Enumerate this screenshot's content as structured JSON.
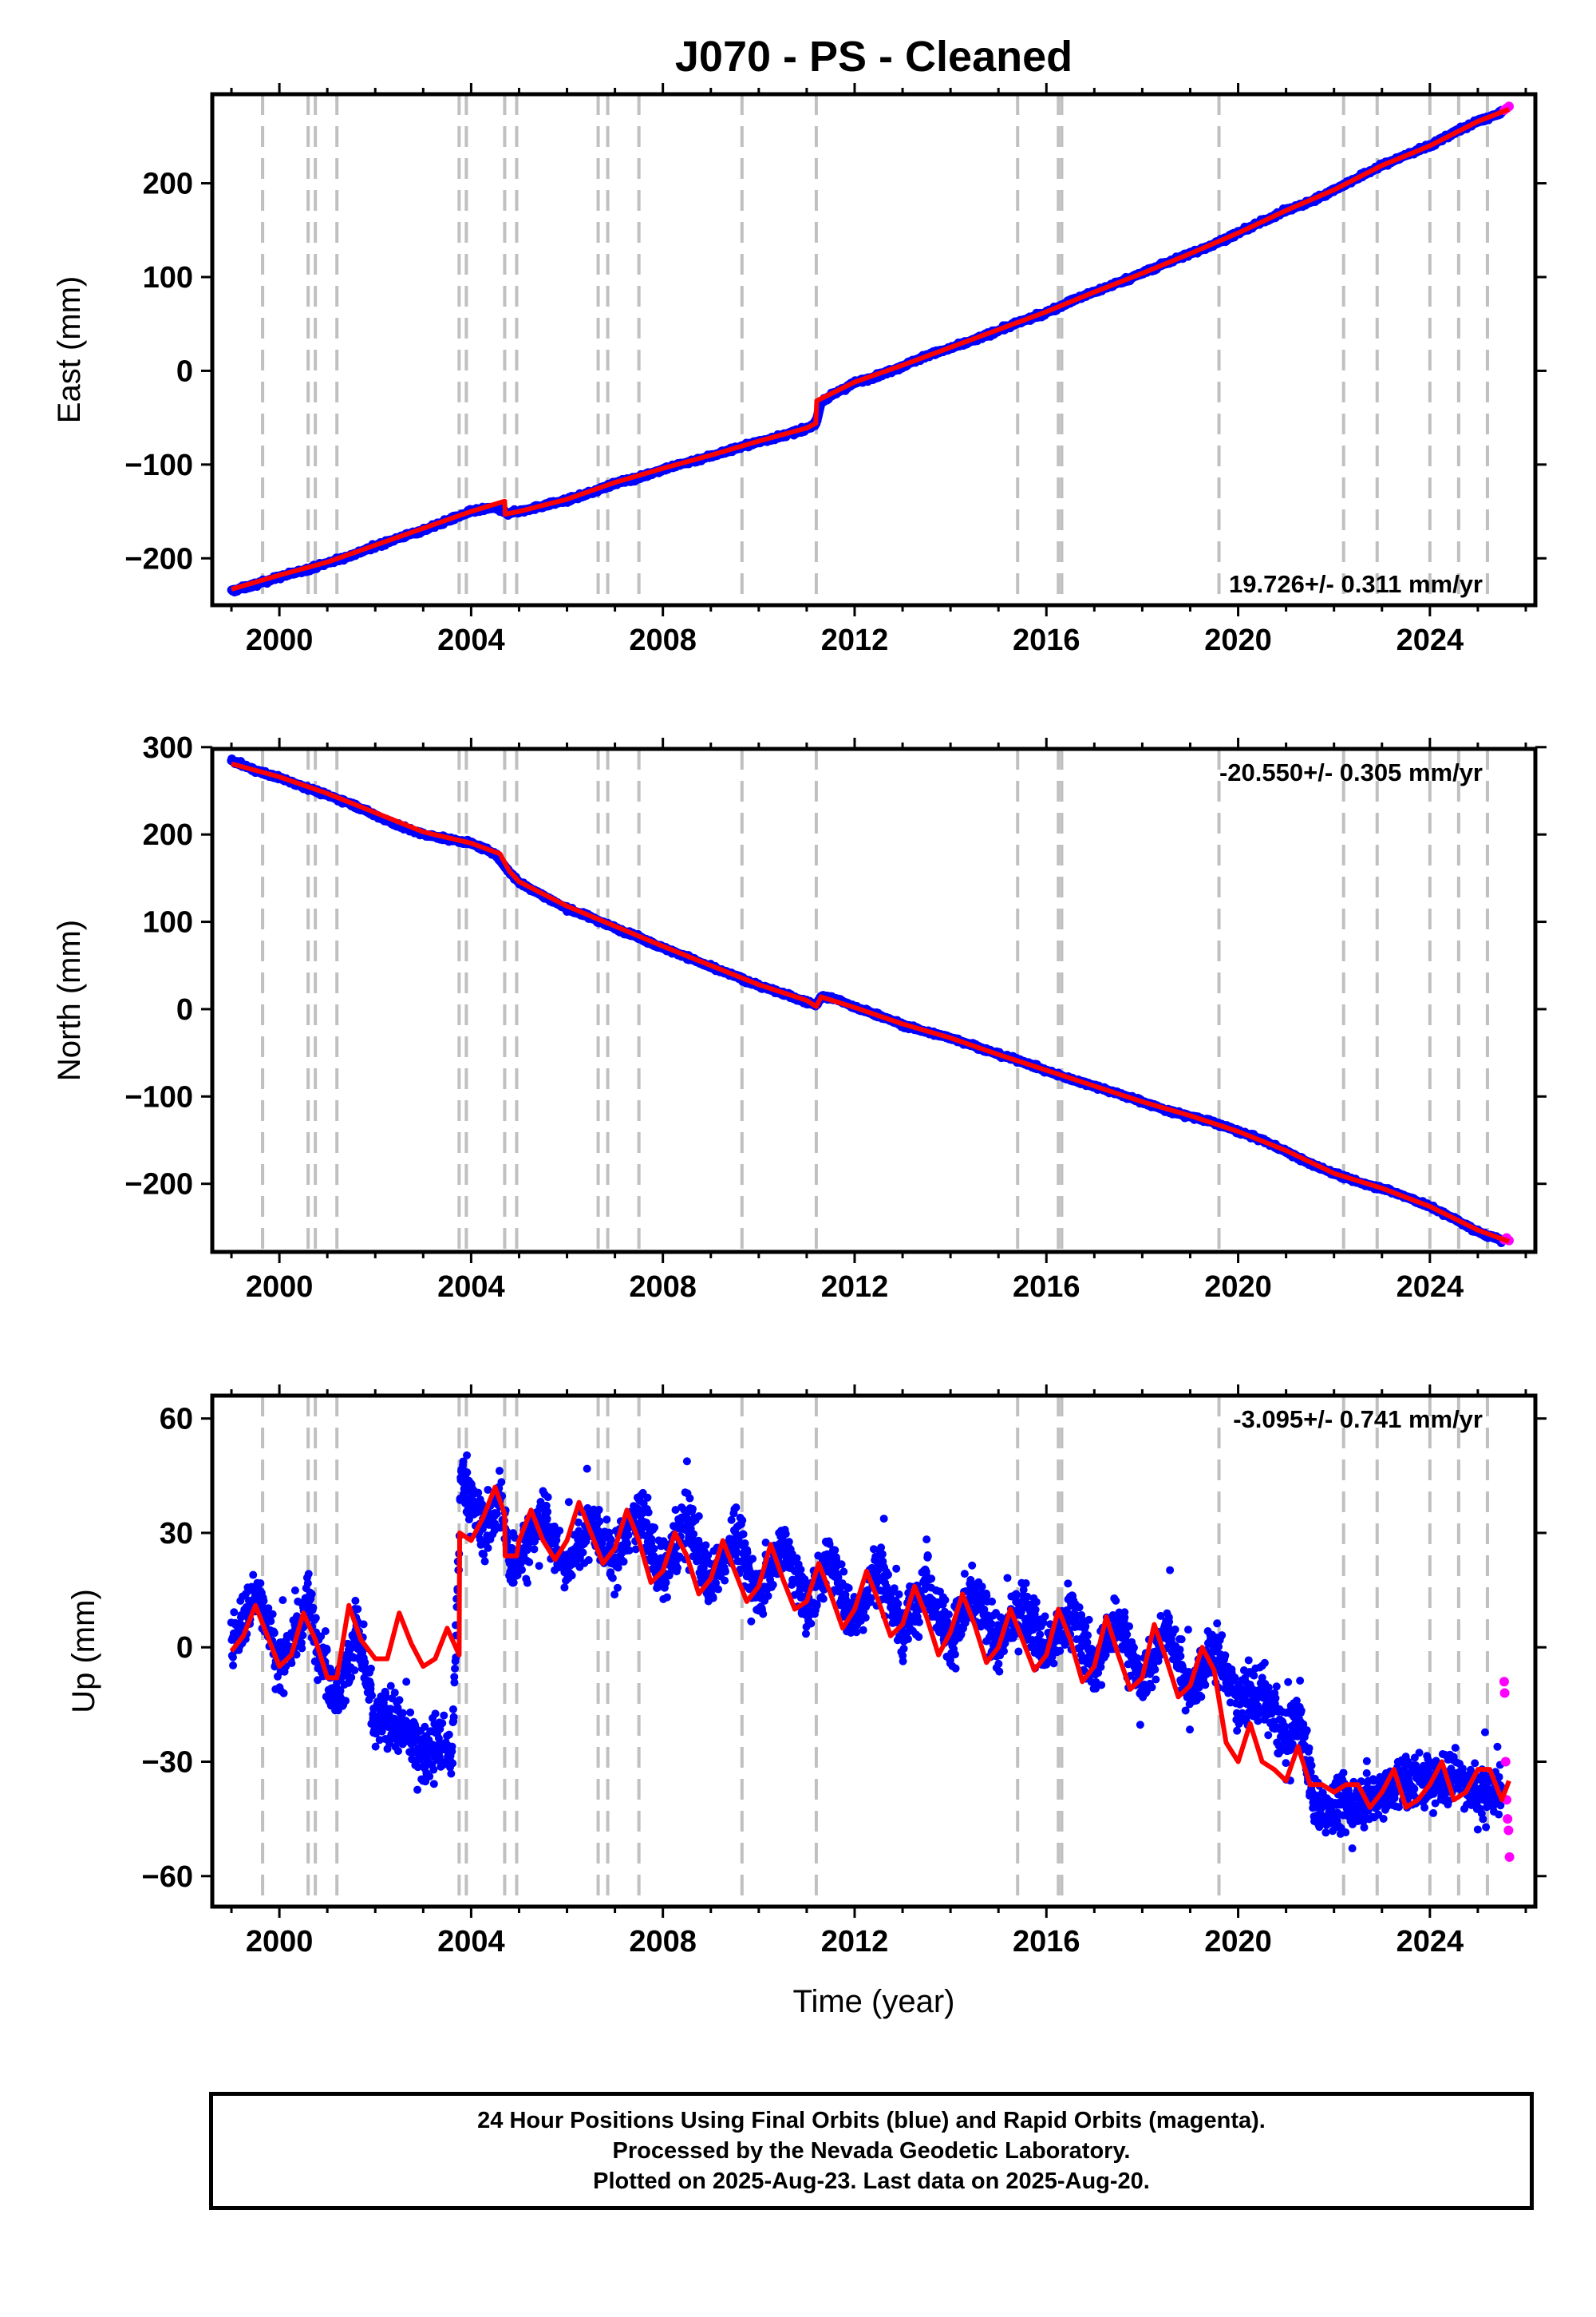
{
  "title": "J070  - PS - Cleaned",
  "x_axis_label": "Time (year)",
  "footer": {
    "line1": "24 Hour Positions Using Final Orbits (blue) and Rapid Orbits (magenta).",
    "line2": "Processed by the Nevada Geodetic Laboratory.",
    "line3": "Plotted on 2025-Aug-23. Last data on 2025-Aug-20."
  },
  "colors": {
    "final_orbits": "#0000ff",
    "rapid_orbits": "#ff00ff",
    "model": "#ff0000",
    "event_lines": "#c0c0c0"
  },
  "chart_data": [
    {
      "type": "scatter",
      "component": "East",
      "ylabel": "East (mm)",
      "xlabel": "",
      "xlim": [
        1998.6,
        2026.2
      ],
      "ylim": [
        -250,
        295
      ],
      "xticks": [
        2000,
        2004,
        2008,
        2012,
        2016,
        2020,
        2024
      ],
      "yticks": [
        -200,
        -100,
        0,
        100,
        200
      ],
      "ytick_labels": [
        "−200",
        "−100",
        "0",
        "100",
        "200"
      ],
      "rate_text": "19.726+/- 0.311 mm/yr",
      "rate_position": "bottom-right",
      "event_lines_years": [
        1999.65,
        2000.6,
        2000.75,
        2001.2,
        2003.75,
        2003.9,
        2004.7,
        2004.95,
        2006.65,
        2006.85,
        2007.5,
        2009.65,
        2011.2,
        2015.4,
        2016.25,
        2016.32,
        2019.6,
        2022.2,
        2022.9,
        2024.0,
        2024.6,
        2025.2
      ],
      "series": [
        {
          "role": "final_orbits",
          "x": [
            1999.0,
            1999.5,
            2000.0,
            2000.5,
            2001.0,
            2001.5,
            2002.0,
            2002.5,
            2003.0,
            2003.5,
            2004.0,
            2004.5,
            2004.75,
            2005.0,
            2005.5,
            2006.0,
            2006.5,
            2007.0,
            2007.5,
            2008.0,
            2008.5,
            2009.0,
            2009.5,
            2010.0,
            2010.5,
            2011.0,
            2011.2,
            2011.3,
            2011.6,
            2012.0,
            2012.5,
            2013.0,
            2013.5,
            2014.0,
            2014.5,
            2015.0,
            2015.5,
            2016.0,
            2016.5,
            2017.0,
            2017.5,
            2018.0,
            2018.5,
            2019.0,
            2019.5,
            2020.0,
            2020.5,
            2021.0,
            2021.5,
            2022.0,
            2022.5,
            2023.0,
            2023.5,
            2024.0,
            2024.5,
            2025.0,
            2025.5
          ],
          "y": [
            -235,
            -228,
            -220,
            -213,
            -205,
            -197,
            -187,
            -178,
            -170,
            -160,
            -150,
            -146,
            -152,
            -150,
            -144,
            -138,
            -130,
            -120,
            -114,
            -105,
            -98,
            -91,
            -83,
            -76,
            -69,
            -62,
            -55,
            -33,
            -24,
            -13,
            -5,
            5,
            16,
            24,
            33,
            43,
            53,
            62,
            74,
            84,
            94,
            104,
            115,
            125,
            135,
            147,
            159,
            171,
            180,
            193,
            206,
            219,
            230,
            240,
            254,
            266,
            275
          ]
        },
        {
          "role": "rapid_orbits",
          "x": [
            2025.55,
            2025.6,
            2025.65
          ],
          "y": [
            278,
            280,
            282
          ]
        },
        {
          "role": "model",
          "x": [
            1999.0,
            2000.0,
            2001.0,
            2002.0,
            2003.0,
            2004.0,
            2004.7,
            2004.71,
            2005.0,
            2006.0,
            2007.0,
            2008.0,
            2009.0,
            2010.0,
            2011.0,
            2011.19,
            2011.21,
            2012.0,
            2013.0,
            2014.0,
            2015.0,
            2016.0,
            2017.0,
            2018.0,
            2019.0,
            2020.0,
            2021.0,
            2022.0,
            2023.0,
            2024.0,
            2025.0,
            2025.65
          ],
          "y": [
            -233,
            -218,
            -204,
            -186,
            -168,
            -150,
            -139,
            -153,
            -150,
            -137,
            -119,
            -104,
            -90,
            -75,
            -61,
            -56,
            -32,
            -12,
            6,
            25,
            44,
            63,
            84,
            104,
            125,
            147,
            171,
            193,
            219,
            240,
            266,
            279
          ]
        }
      ]
    },
    {
      "type": "scatter",
      "component": "North",
      "ylabel": "North (mm)",
      "xlabel": "",
      "xlim": [
        1998.6,
        2026.2
      ],
      "ylim": [
        -278,
        298
      ],
      "xticks": [
        2000,
        2004,
        2008,
        2012,
        2016,
        2020,
        2024
      ],
      "yticks": [
        -200,
        -100,
        0,
        100,
        200,
        300
      ],
      "ytick_labels": [
        "−200",
        "−100",
        "0",
        "100",
        "200",
        "300"
      ],
      "rate_text": "-20.550+/- 0.305 mm/yr",
      "rate_position": "top-right",
      "event_lines_years": [
        1999.65,
        2000.6,
        2000.75,
        2001.2,
        2003.75,
        2003.9,
        2004.7,
        2004.95,
        2006.65,
        2006.85,
        2007.5,
        2009.65,
        2011.2,
        2015.4,
        2016.25,
        2016.32,
        2019.6,
        2022.2,
        2022.9,
        2024.0,
        2024.6,
        2025.2
      ],
      "series": [
        {
          "role": "final_orbits",
          "x": [
            1999.0,
            1999.5,
            2000.0,
            2000.5,
            2001.0,
            2001.5,
            2002.0,
            2002.5,
            2003.0,
            2003.5,
            2004.0,
            2004.5,
            2004.75,
            2005.0,
            2005.5,
            2006.0,
            2006.5,
            2007.0,
            2007.5,
            2008.0,
            2008.5,
            2009.0,
            2009.5,
            2010.0,
            2010.5,
            2011.0,
            2011.2,
            2011.3,
            2011.6,
            2012.0,
            2012.5,
            2013.0,
            2013.5,
            2014.0,
            2014.5,
            2015.0,
            2015.5,
            2016.0,
            2016.5,
            2017.0,
            2017.5,
            2018.0,
            2018.5,
            2019.0,
            2019.5,
            2020.0,
            2020.5,
            2021.0,
            2021.5,
            2022.0,
            2022.5,
            2023.0,
            2023.5,
            2024.0,
            2024.5,
            2025.0,
            2025.5
          ],
          "y": [
            285,
            273,
            265,
            255,
            245,
            235,
            222,
            210,
            200,
            195,
            190,
            178,
            160,
            145,
            130,
            115,
            105,
            93,
            82,
            70,
            60,
            48,
            38,
            27,
            18,
            8,
            5,
            14,
            12,
            2,
            -7,
            -18,
            -26,
            -33,
            -42,
            -52,
            -60,
            -71,
            -80,
            -88,
            -97,
            -106,
            -116,
            -123,
            -130,
            -140,
            -150,
            -163,
            -177,
            -188,
            -198,
            -205,
            -215,
            -226,
            -240,
            -255,
            -265
          ]
        },
        {
          "role": "rapid_orbits",
          "x": [
            2025.55,
            2025.6,
            2025.65
          ],
          "y": [
            -264,
            -262,
            -265
          ]
        },
        {
          "role": "model",
          "x": [
            1999.0,
            2000.0,
            2001.0,
            2002.0,
            2003.0,
            2004.0,
            2004.6,
            2004.8,
            2005.0,
            2006.0,
            2007.0,
            2008.0,
            2009.0,
            2010.0,
            2011.0,
            2011.2,
            2011.3,
            2012.0,
            2013.0,
            2014.0,
            2015.0,
            2016.0,
            2017.0,
            2018.0,
            2019.0,
            2020.0,
            2021.0,
            2022.0,
            2023.0,
            2024.0,
            2025.0,
            2025.65
          ],
          "y": [
            281,
            266,
            247,
            225,
            203,
            190,
            178,
            158,
            146,
            118,
            95,
            72,
            50,
            28,
            10,
            3,
            14,
            2,
            -17,
            -33,
            -52,
            -70,
            -88,
            -106,
            -122,
            -140,
            -162,
            -188,
            -205,
            -226,
            -253,
            -266
          ]
        }
      ]
    },
    {
      "type": "scatter",
      "component": "Up",
      "ylabel": "Up (mm)",
      "xlabel": "Time (year)",
      "xlim": [
        1998.6,
        2026.2
      ],
      "ylim": [
        -68,
        66
      ],
      "xticks": [
        2000,
        2004,
        2008,
        2012,
        2016,
        2020,
        2024
      ],
      "yticks": [
        -60,
        -30,
        0,
        30,
        60
      ],
      "ytick_labels": [
        "−60",
        "−30",
        "0",
        "30",
        "60"
      ],
      "rate_text": "-3.095+/- 0.741 mm/yr",
      "rate_position": "top-right",
      "event_lines_years": [
        1999.65,
        2000.6,
        2000.75,
        2001.2,
        2003.75,
        2003.9,
        2004.7,
        2004.95,
        2006.65,
        2006.85,
        2007.5,
        2009.65,
        2011.2,
        2015.4,
        2016.25,
        2016.32,
        2019.6,
        2022.2,
        2022.9,
        2024.0,
        2024.6,
        2025.2
      ],
      "series": [
        {
          "role": "final_orbits",
          "x": [
            1999.0,
            1999.3,
            1999.6,
            2000.0,
            2000.3,
            2000.6,
            2001.0,
            2001.3,
            2001.6,
            2002.0,
            2002.3,
            2002.6,
            2003.0,
            2003.3,
            2003.6,
            2003.8,
            2004.0,
            2004.3,
            2004.6,
            2004.8,
            2005.0,
            2005.5,
            2006.0,
            2006.5,
            2007.0,
            2007.5,
            2008.0,
            2008.5,
            2009.0,
            2009.5,
            2010.0,
            2010.5,
            2011.0,
            2011.5,
            2012.0,
            2012.5,
            2013.0,
            2013.5,
            2014.0,
            2014.5,
            2015.0,
            2015.5,
            2016.0,
            2016.5,
            2017.0,
            2017.5,
            2018.0,
            2018.5,
            2019.0,
            2019.5,
            2020.0,
            2020.5,
            2021.0,
            2021.3,
            2021.6,
            2022.0,
            2022.5,
            2023.0,
            2023.5,
            2024.0,
            2024.5,
            2025.0,
            2025.5
          ],
          "y": [
            0,
            10,
            14,
            -5,
            2,
            12,
            -8,
            -12,
            6,
            -20,
            -18,
            -22,
            -28,
            -25,
            -30,
            48,
            38,
            30,
            40,
            22,
            24,
            35,
            20,
            34,
            22,
            36,
            18,
            34,
            16,
            30,
            14,
            28,
            10,
            24,
            6,
            22,
            4,
            18,
            2,
            14,
            0,
            12,
            -2,
            10,
            -6,
            8,
            -10,
            6,
            -12,
            0,
            -14,
            -12,
            -25,
            -18,
            -42,
            -42,
            -40,
            -38,
            -35,
            -35,
            -33,
            -38,
            -38
          ]
        },
        {
          "role": "rapid_orbits",
          "x": [
            2025.55,
            2025.56,
            2025.58,
            2025.6,
            2025.62,
            2025.64,
            2025.66
          ],
          "y": [
            -9,
            -12,
            -30,
            -40,
            -45,
            -48,
            -55
          ]
        },
        {
          "role": "model",
          "x": [
            1999.0,
            1999.25,
            1999.5,
            1999.75,
            2000.0,
            2000.25,
            2000.5,
            2000.75,
            2001.0,
            2001.2,
            2001.45,
            2001.7,
            2002.0,
            2002.25,
            2002.5,
            2002.75,
            2003.0,
            2003.25,
            2003.5,
            2003.75,
            2003.76,
            2004.0,
            2004.25,
            2004.5,
            2004.7,
            2004.71,
            2004.95,
            2005.0,
            2005.25,
            2005.5,
            2005.75,
            2006.0,
            2006.25,
            2006.5,
            2006.75,
            2007.0,
            2007.25,
            2007.5,
            2007.75,
            2008.0,
            2008.25,
            2008.5,
            2008.75,
            2009.0,
            2009.25,
            2009.5,
            2009.75,
            2010.0,
            2010.25,
            2010.5,
            2010.75,
            2011.0,
            2011.25,
            2011.5,
            2011.75,
            2012.0,
            2012.25,
            2012.5,
            2012.75,
            2013.0,
            2013.25,
            2013.5,
            2013.75,
            2014.0,
            2014.25,
            2014.5,
            2014.75,
            2015.0,
            2015.25,
            2015.5,
            2015.75,
            2016.0,
            2016.25,
            2016.5,
            2016.75,
            2017.0,
            2017.25,
            2017.5,
            2017.75,
            2018.0,
            2018.25,
            2018.5,
            2018.75,
            2019.0,
            2019.25,
            2019.5,
            2019.75,
            2020.0,
            2020.25,
            2020.5,
            2020.75,
            2021.0,
            2021.25,
            2021.5,
            2021.75,
            2022.0,
            2022.25,
            2022.5,
            2022.75,
            2023.0,
            2023.25,
            2023.5,
            2023.75,
            2024.0,
            2024.25,
            2024.5,
            2024.75,
            2025.0,
            2025.25,
            2025.5,
            2025.65
          ],
          "y": [
            -1,
            3,
            11,
            3,
            -5,
            -2,
            9,
            2,
            -8,
            -8,
            11,
            2,
            -3,
            -3,
            9,
            1,
            -5,
            -3,
            5,
            -2,
            30,
            28,
            34,
            42,
            35,
            24,
            24,
            28,
            36,
            28,
            23,
            28,
            38,
            30,
            22,
            26,
            36,
            28,
            17,
            20,
            30,
            24,
            14,
            18,
            28,
            20,
            12,
            16,
            27,
            18,
            10,
            12,
            22,
            14,
            5,
            10,
            20,
            12,
            3,
            6,
            16,
            8,
            -2,
            4,
            14,
            6,
            -4,
            0,
            10,
            2,
            -6,
            -2,
            10,
            2,
            -9,
            -5,
            8,
            -2,
            -11,
            -8,
            6,
            -3,
            -13,
            -10,
            0,
            -6,
            -25,
            -30,
            -20,
            -30,
            -32,
            -35,
            -26,
            -36,
            -36,
            -38,
            -36,
            -36,
            -42,
            -38,
            -32,
            -42,
            -40,
            -36,
            -30,
            -40,
            -38,
            -32,
            -32,
            -40,
            -35
          ]
        }
      ]
    }
  ]
}
